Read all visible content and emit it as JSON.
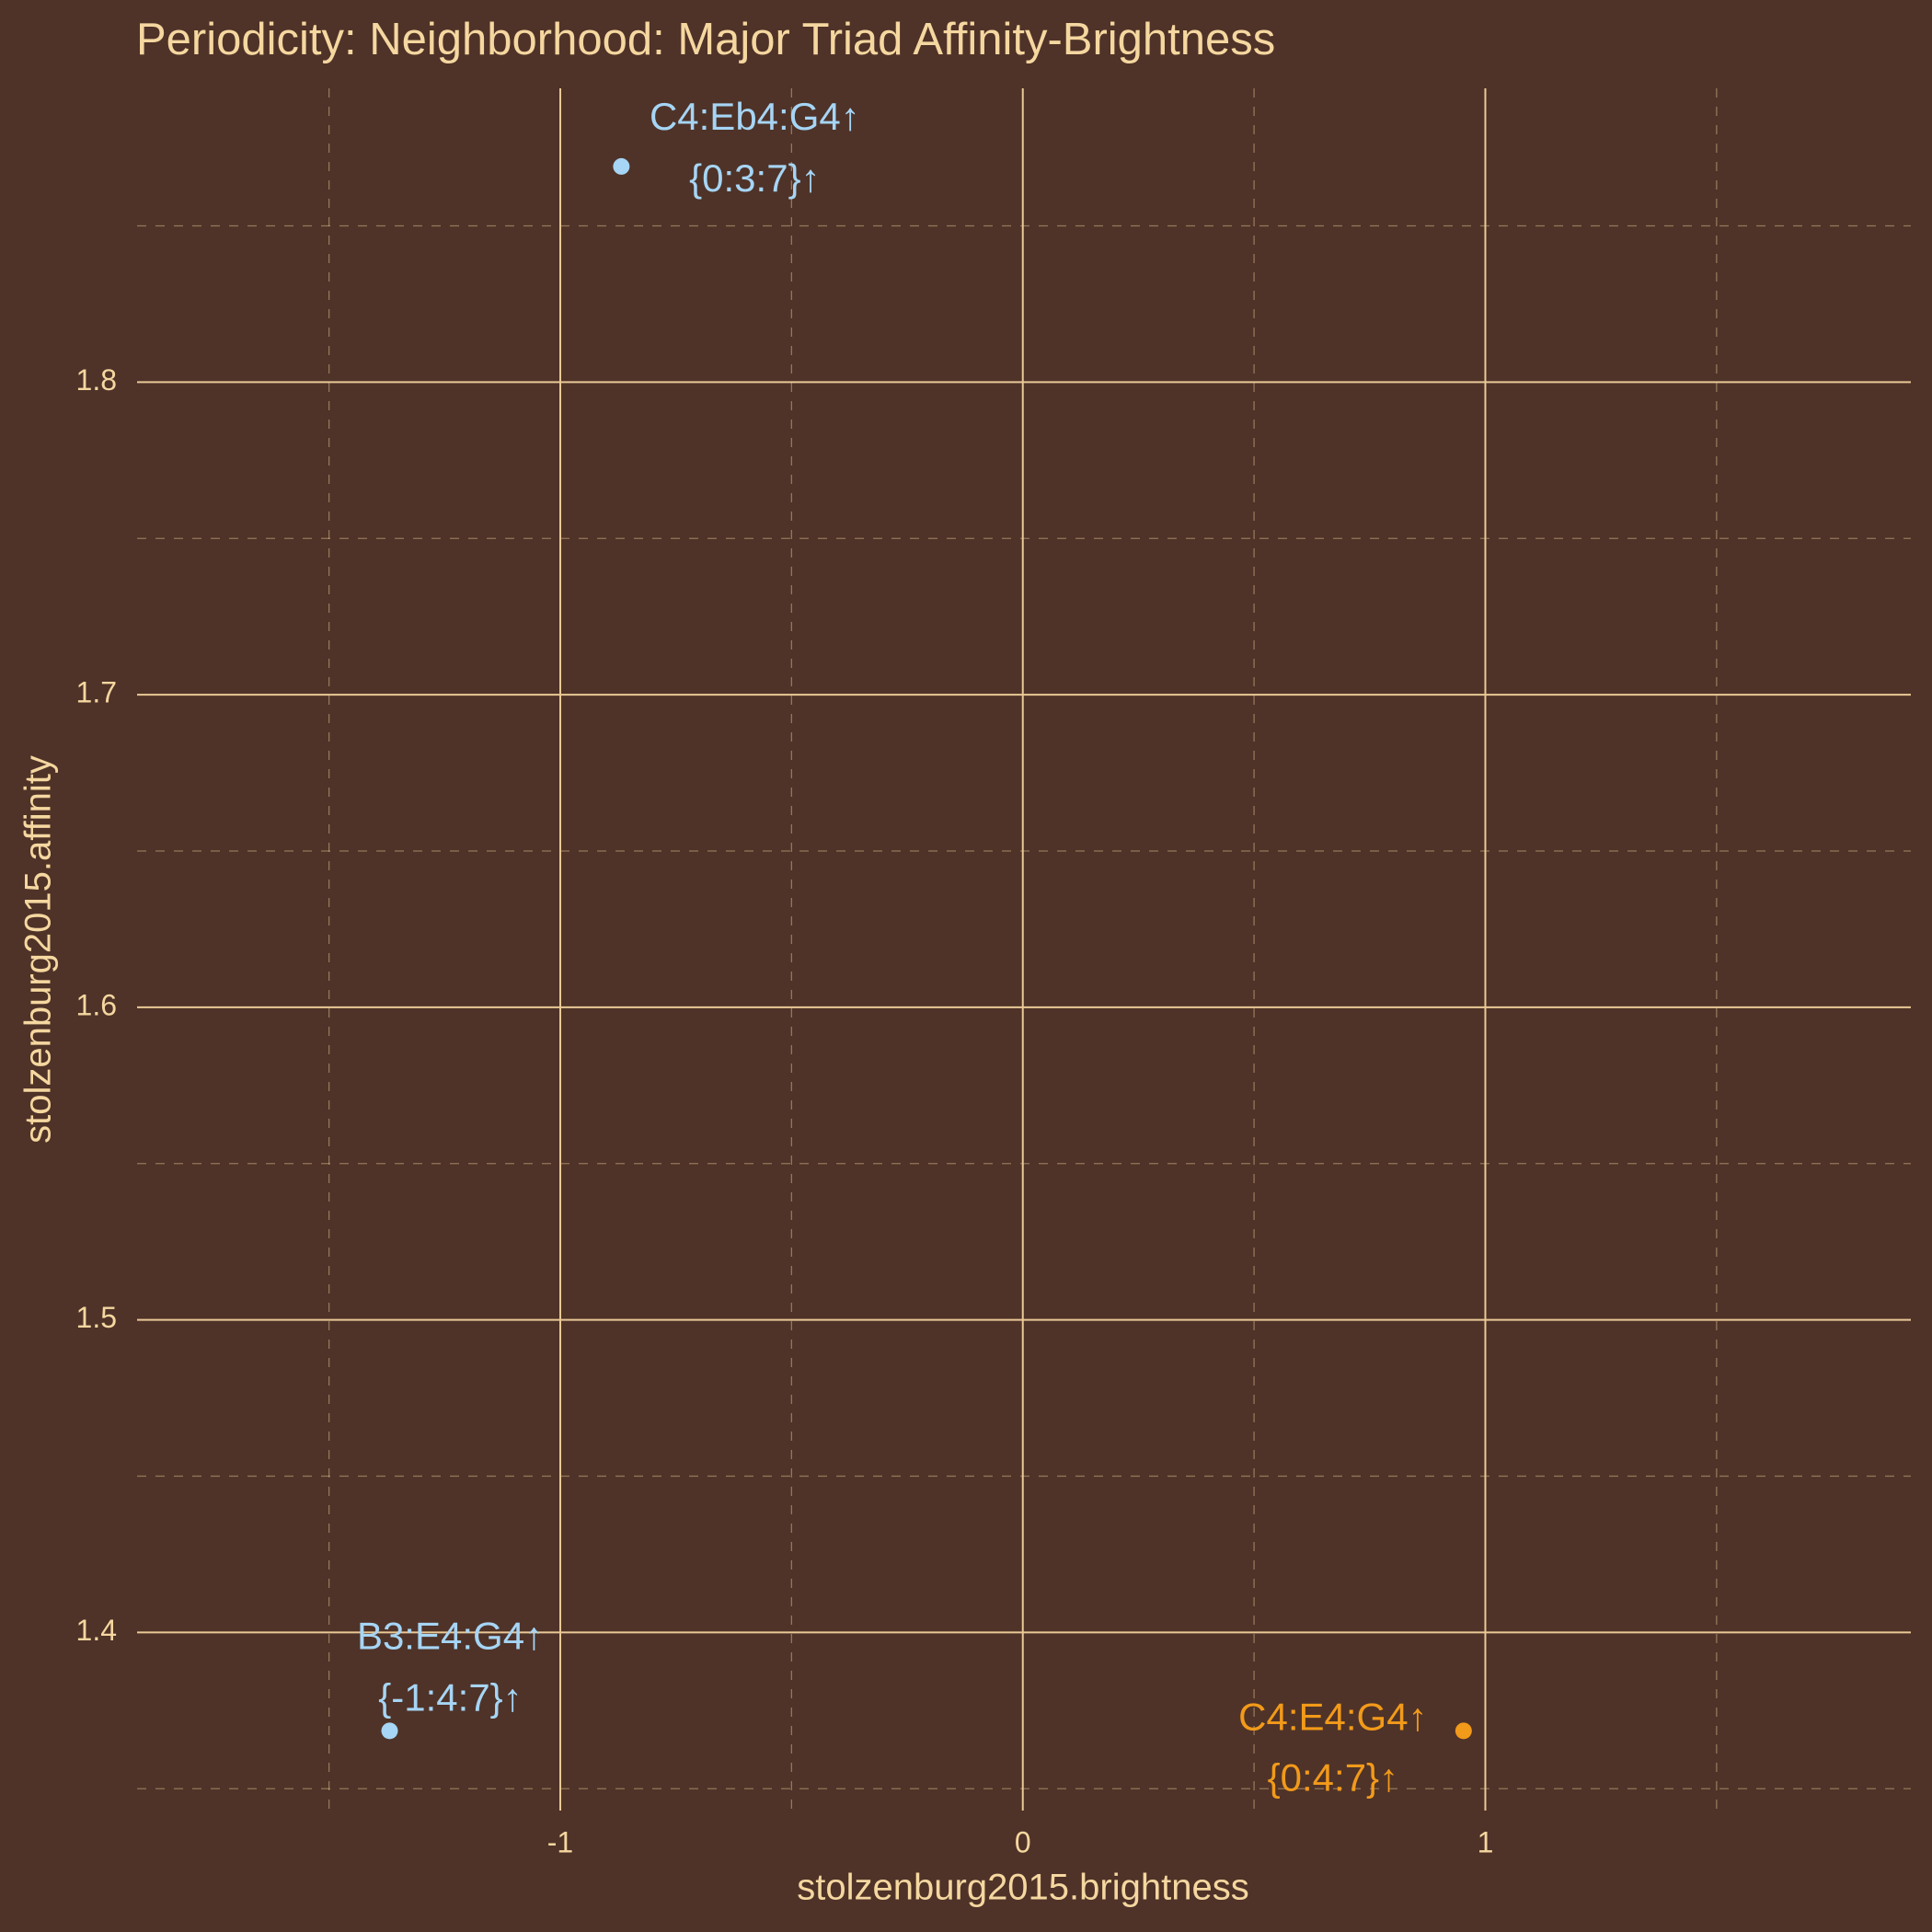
{
  "chart_data": {
    "type": "scatter",
    "title": "Periodicity: Neighborhood: Major Triad Affinity-Brightness",
    "x_label": "stolzenburg2015.brightness",
    "y_label": "stolzenburg2015.affinity",
    "x": [
      -0.868,
      -1.369,
      0.953
    ],
    "y": [
      1.869,
      1.3685,
      1.3685
    ],
    "labels": [
      [
        "C4:Eb4:G4↑",
        "{0:3:7}↑"
      ],
      [
        "B3:E4:G4↑",
        "{-1:4:7}↑"
      ],
      [
        "C4:E4:G4↑",
        "{0:4:7}↑"
      ]
    ],
    "colors": [
      "#a6d5f5",
      "#a6d5f5",
      "#f29a1a"
    ],
    "xlim": [
      -1.915,
      1.92
    ],
    "ylim": [
      1.343,
      1.894
    ],
    "xticks": [
      -1,
      0,
      1
    ],
    "yticks": [
      1.4,
      1.5,
      1.6,
      1.7,
      1.8
    ],
    "grid": true
  }
}
